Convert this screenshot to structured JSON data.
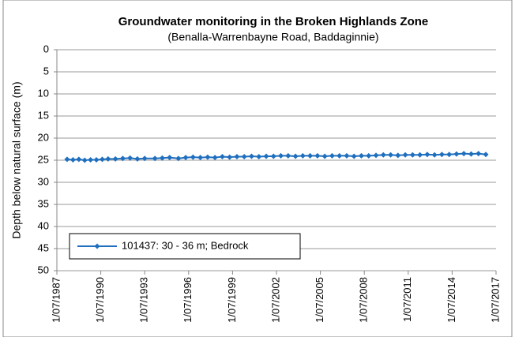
{
  "chart_data": {
    "type": "line",
    "title": "Groundwater monitoring in the Broken Highlands Zone",
    "subtitle": "(Benalla-Warrenbayne Road, Baddaginnie)",
    "y_label": "Depth below natural surface (m)",
    "y_inverted": true,
    "grid": true,
    "legend": "bottom-left",
    "ylim": [
      0,
      50
    ],
    "yticks": [
      0,
      5,
      10,
      15,
      20,
      25,
      30,
      35,
      40,
      45,
      50
    ],
    "xlim": [
      1987.5,
      2017.5
    ],
    "xticks": [
      {
        "value": 1987.5,
        "label": "1/07/1987"
      },
      {
        "value": 1990.5,
        "label": "1/07/1990"
      },
      {
        "value": 1993.5,
        "label": "1/07/1993"
      },
      {
        "value": 1996.5,
        "label": "1/07/1996"
      },
      {
        "value": 1999.5,
        "label": "1/07/1999"
      },
      {
        "value": 2002.5,
        "label": "1/07/2002"
      },
      {
        "value": 2005.5,
        "label": "1/07/2005"
      },
      {
        "value": 2008.5,
        "label": "1/07/2008"
      },
      {
        "value": 2011.5,
        "label": "1/07/2011"
      },
      {
        "value": 2014.5,
        "label": "1/07/2014"
      },
      {
        "value": 2017.5,
        "label": "1/07/2017"
      }
    ],
    "x": [
      1988.2,
      1988.6,
      1989.0,
      1989.4,
      1989.8,
      1990.2,
      1990.6,
      1991.0,
      1991.5,
      1992.0,
      1992.5,
      1993.0,
      1993.5,
      1994.2,
      1994.7,
      1995.2,
      1995.8,
      1996.3,
      1996.8,
      1997.3,
      1997.8,
      1998.3,
      1998.8,
      1999.3,
      1999.8,
      2000.3,
      2000.8,
      2001.3,
      2001.8,
      2002.3,
      2002.8,
      2003.3,
      2003.8,
      2004.3,
      2004.8,
      2005.3,
      2005.8,
      2006.3,
      2006.8,
      2007.3,
      2007.8,
      2008.3,
      2008.8,
      2009.3,
      2009.8,
      2010.3,
      2010.8,
      2011.3,
      2011.8,
      2012.3,
      2012.8,
      2013.3,
      2013.8,
      2014.3,
      2014.8,
      2015.3,
      2015.8,
      2016.3,
      2016.8
    ],
    "series": [
      {
        "name": "101437: 30 - 36 m; Bedrock",
        "color": "#1f6fbf",
        "values": [
          24.8,
          24.9,
          24.8,
          25.0,
          24.9,
          24.9,
          24.8,
          24.7,
          24.7,
          24.6,
          24.5,
          24.7,
          24.6,
          24.6,
          24.5,
          24.4,
          24.6,
          24.4,
          24.3,
          24.4,
          24.3,
          24.4,
          24.2,
          24.3,
          24.2,
          24.2,
          24.1,
          24.2,
          24.1,
          24.1,
          24.0,
          24.0,
          24.1,
          24.0,
          24.0,
          24.0,
          24.1,
          24.0,
          24.0,
          24.0,
          24.1,
          24.0,
          24.0,
          23.9,
          23.8,
          23.8,
          23.9,
          23.8,
          23.8,
          23.8,
          23.7,
          23.8,
          23.7,
          23.7,
          23.6,
          23.5,
          23.6,
          23.5,
          23.7
        ]
      }
    ]
  }
}
